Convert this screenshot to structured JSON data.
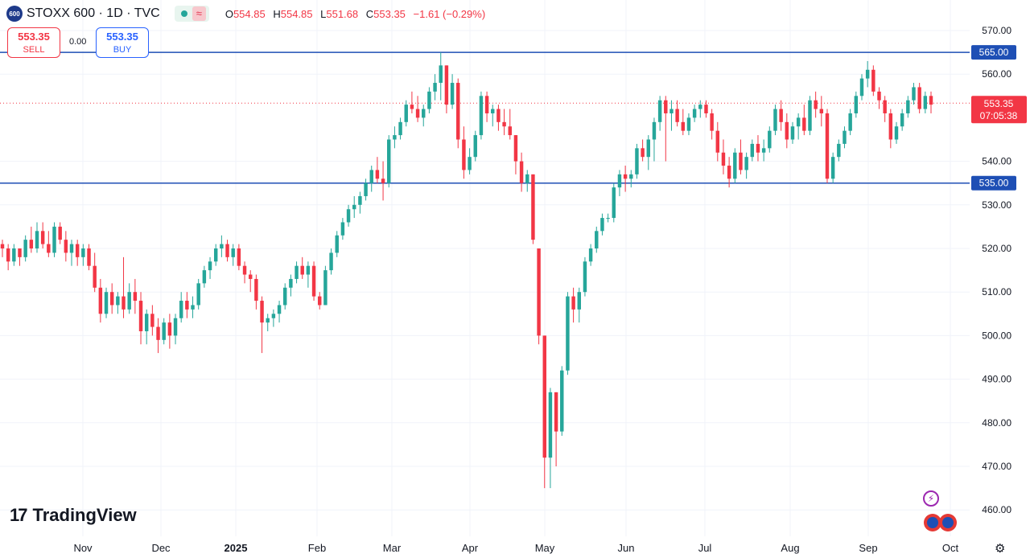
{
  "header": {
    "symbol_badge": "600",
    "symbol": "STOXX 600 · 1D · TVC",
    "ohlc": {
      "o_label": "O",
      "o": "554.85",
      "h_label": "H",
      "h": "554.85",
      "l_label": "L",
      "l": "551.68",
      "c_label": "C",
      "c": "553.35",
      "change": "−1.61 (−0.29%)"
    },
    "wave_icon": "≈"
  },
  "trade": {
    "sell_price": "553.35",
    "sell_label": "SELL",
    "spread": "0.00",
    "buy_price": "553.35",
    "buy_label": "BUY"
  },
  "branding": {
    "logo_text": "TradingView",
    "logo_mark": "17"
  },
  "icons": [
    "bolt-icon",
    "flag-icon",
    "settings-icon"
  ],
  "colors": {
    "up": "#26a69a",
    "down": "#f23645",
    "hline": "#1e4fb5",
    "grid": "#f0f3fa",
    "axis_text": "#131722",
    "price_label": "#f23645"
  },
  "chart_data": {
    "type": "candlestick",
    "y_ticks": [
      "570.00",
      "560.00",
      "540.00",
      "530.00",
      "520.00",
      "510.00",
      "500.00",
      "490.00",
      "480.00",
      "470.00",
      "460.00"
    ],
    "y_tick_values": [
      570,
      560,
      540,
      530,
      520,
      510,
      500,
      490,
      480,
      470,
      460
    ],
    "ylim": [
      455,
      574
    ],
    "x_ticks": [
      "Nov",
      "Dec",
      "2025",
      "Feb",
      "Mar",
      "Apr",
      "May",
      "Jun",
      "Jul",
      "Aug",
      "Sep",
      "Oct"
    ],
    "horizontal_lines": [
      {
        "value": 565,
        "label": "565.00"
      },
      {
        "value": 535,
        "label": "535.00"
      }
    ],
    "last_price": {
      "value": 553.35,
      "label": "553.35",
      "countdown": "07:05:38"
    },
    "grid": true,
    "ohlc": [
      [
        521,
        522,
        518,
        520
      ],
      [
        520,
        521,
        515,
        517
      ],
      [
        517,
        521,
        516,
        520
      ],
      [
        520,
        520,
        516,
        518
      ],
      [
        518,
        523,
        517,
        522
      ],
      [
        522,
        525,
        519,
        520
      ],
      [
        520,
        526,
        519,
        524
      ],
      [
        524,
        526,
        520,
        521
      ],
      [
        521,
        524,
        518,
        519
      ],
      [
        519,
        526,
        518,
        525
      ],
      [
        525,
        526,
        521,
        522
      ],
      [
        522,
        524,
        517,
        519
      ],
      [
        519,
        522,
        516,
        521
      ],
      [
        521,
        522,
        516,
        518
      ],
      [
        518,
        521,
        516,
        520
      ],
      [
        520,
        521,
        515,
        516
      ],
      [
        516,
        519,
        510,
        511
      ],
      [
        511,
        513,
        503,
        505
      ],
      [
        505,
        511,
        504,
        510
      ],
      [
        510,
        512,
        505,
        507
      ],
      [
        507,
        510,
        505,
        509
      ],
      [
        509,
        518,
        504,
        506
      ],
      [
        506,
        512,
        505,
        510
      ],
      [
        510,
        513,
        505,
        508
      ],
      [
        508,
        510,
        498,
        501
      ],
      [
        501,
        506,
        498,
        505
      ],
      [
        505,
        507,
        500,
        502
      ],
      [
        502,
        504,
        496,
        499
      ],
      [
        499,
        504,
        498,
        503
      ],
      [
        503,
        505,
        497,
        500
      ],
      [
        500,
        505,
        498,
        504
      ],
      [
        504,
        510,
        503,
        508
      ],
      [
        508,
        510,
        504,
        506
      ],
      [
        506,
        509,
        504,
        507
      ],
      [
        507,
        513,
        506,
        512
      ],
      [
        512,
        516,
        511,
        515
      ],
      [
        515,
        518,
        513,
        517
      ],
      [
        517,
        521,
        516,
        520
      ],
      [
        520,
        523,
        518,
        521
      ],
      [
        521,
        522,
        517,
        518
      ],
      [
        518,
        521,
        516,
        520
      ],
      [
        520,
        521,
        515,
        516
      ],
      [
        516,
        517,
        512,
        514
      ],
      [
        514,
        515,
        510,
        513
      ],
      [
        513,
        514,
        506,
        508
      ],
      [
        508,
        509,
        496,
        503
      ],
      [
        503,
        505,
        501,
        504
      ],
      [
        504,
        506,
        502,
        505
      ],
      [
        505,
        508,
        503,
        507
      ],
      [
        507,
        512,
        506,
        511
      ],
      [
        511,
        514,
        509,
        513
      ],
      [
        513,
        517,
        512,
        516
      ],
      [
        516,
        518,
        513,
        514
      ],
      [
        514,
        517,
        511,
        516
      ],
      [
        516,
        517,
        508,
        509
      ],
      [
        509,
        510,
        506,
        507
      ],
      [
        507,
        516,
        507,
        515
      ],
      [
        515,
        520,
        514,
        519
      ],
      [
        519,
        524,
        518,
        523
      ],
      [
        523,
        527,
        522,
        526
      ],
      [
        526,
        530,
        525,
        529
      ],
      [
        529,
        532,
        527,
        530
      ],
      [
        530,
        533,
        528,
        532
      ],
      [
        532,
        536,
        531,
        535
      ],
      [
        535,
        539,
        533,
        538
      ],
      [
        538,
        541,
        535,
        536
      ],
      [
        536,
        540,
        531,
        535
      ],
      [
        535,
        546,
        534,
        545
      ],
      [
        545,
        548,
        543,
        546
      ],
      [
        546,
        550,
        545,
        549
      ],
      [
        549,
        554,
        548,
        553
      ],
      [
        553,
        556,
        551,
        552
      ],
      [
        552,
        555,
        549,
        550
      ],
      [
        550,
        553,
        548,
        552
      ],
      [
        552,
        557,
        551,
        556
      ],
      [
        556,
        560,
        554,
        558
      ],
      [
        558,
        565,
        554,
        562
      ],
      [
        562,
        562,
        551,
        553
      ],
      [
        553,
        560,
        552,
        558
      ],
      [
        558,
        559,
        543,
        545
      ],
      [
        545,
        548,
        536,
        538
      ],
      [
        538,
        543,
        537,
        541
      ],
      [
        541,
        547,
        540,
        546
      ],
      [
        546,
        556,
        545,
        555
      ],
      [
        555,
        556,
        549,
        551
      ],
      [
        551,
        553,
        548,
        552
      ],
      [
        552,
        553,
        547,
        549
      ],
      [
        549,
        552,
        546,
        548
      ],
      [
        548,
        552,
        545,
        546
      ],
      [
        546,
        546,
        537,
        540
      ],
      [
        540,
        542,
        533,
        535
      ],
      [
        535,
        538,
        533,
        537
      ],
      [
        537,
        537,
        521,
        522
      ],
      [
        520,
        520,
        498,
        500
      ],
      [
        500,
        500,
        465,
        472
      ],
      [
        472,
        488,
        465,
        487
      ],
      [
        487,
        487,
        470,
        478
      ],
      [
        478,
        493,
        477,
        492
      ],
      [
        492,
        510,
        491,
        509
      ],
      [
        509,
        511,
        503,
        506
      ],
      [
        506,
        511,
        503,
        510
      ],
      [
        510,
        518,
        509,
        517
      ],
      [
        517,
        521,
        516,
        520
      ],
      [
        520,
        525,
        519,
        524
      ],
      [
        524,
        528,
        523,
        527
      ],
      [
        527,
        528,
        526,
        527
      ],
      [
        527,
        535,
        526,
        534
      ],
      [
        534,
        538,
        532,
        537
      ],
      [
        537,
        539,
        533,
        536
      ],
      [
        536,
        538,
        534,
        537
      ],
      [
        537,
        544,
        536,
        543
      ],
      [
        543,
        545,
        540,
        541
      ],
      [
        541,
        546,
        538,
        545
      ],
      [
        545,
        550,
        540,
        549
      ],
      [
        549,
        555,
        547,
        554
      ],
      [
        554,
        555,
        540,
        551
      ],
      [
        551,
        554,
        547,
        552
      ],
      [
        552,
        554,
        548,
        549
      ],
      [
        549,
        552,
        546,
        547
      ],
      [
        547,
        551,
        546,
        550
      ],
      [
        550,
        553,
        549,
        552
      ],
      [
        552,
        554,
        550,
        553
      ],
      [
        553,
        554,
        550,
        551
      ],
      [
        551,
        552,
        545,
        547
      ],
      [
        547,
        549,
        540,
        542
      ],
      [
        542,
        545,
        537,
        539
      ],
      [
        539,
        541,
        534,
        536
      ],
      [
        536,
        543,
        535,
        542
      ],
      [
        542,
        545,
        537,
        538
      ],
      [
        538,
        542,
        536,
        541
      ],
      [
        541,
        545,
        540,
        544
      ],
      [
        544,
        546,
        540,
        542
      ],
      [
        542,
        545,
        540,
        543
      ],
      [
        543,
        548,
        542,
        547
      ],
      [
        547,
        553,
        546,
        552
      ],
      [
        552,
        554,
        547,
        549
      ],
      [
        549,
        551,
        543,
        545
      ],
      [
        545,
        549,
        544,
        548
      ],
      [
        548,
        551,
        545,
        550
      ],
      [
        550,
        553,
        546,
        547
      ],
      [
        547,
        555,
        546,
        554
      ],
      [
        554,
        556,
        550,
        552
      ],
      [
        552,
        555,
        548,
        551
      ],
      [
        551,
        552,
        535,
        536
      ],
      [
        536,
        542,
        535,
        541
      ],
      [
        541,
        545,
        540,
        544
      ],
      [
        544,
        548,
        543,
        547
      ],
      [
        547,
        552,
        546,
        551
      ],
      [
        551,
        556,
        550,
        555
      ],
      [
        555,
        560,
        554,
        559
      ],
      [
        559,
        563,
        557,
        561
      ],
      [
        561,
        562,
        555,
        556
      ],
      [
        556,
        557,
        552,
        554
      ],
      [
        554,
        555,
        549,
        551
      ],
      [
        551,
        552,
        543,
        545
      ],
      [
        545,
        549,
        544,
        548
      ],
      [
        548,
        552,
        547,
        551
      ],
      [
        551,
        555,
        550,
        554
      ],
      [
        554,
        558,
        553,
        557
      ],
      [
        557,
        558,
        551,
        552
      ],
      [
        552,
        556,
        551,
        555
      ],
      [
        555,
        556,
        551,
        553
      ]
    ]
  }
}
